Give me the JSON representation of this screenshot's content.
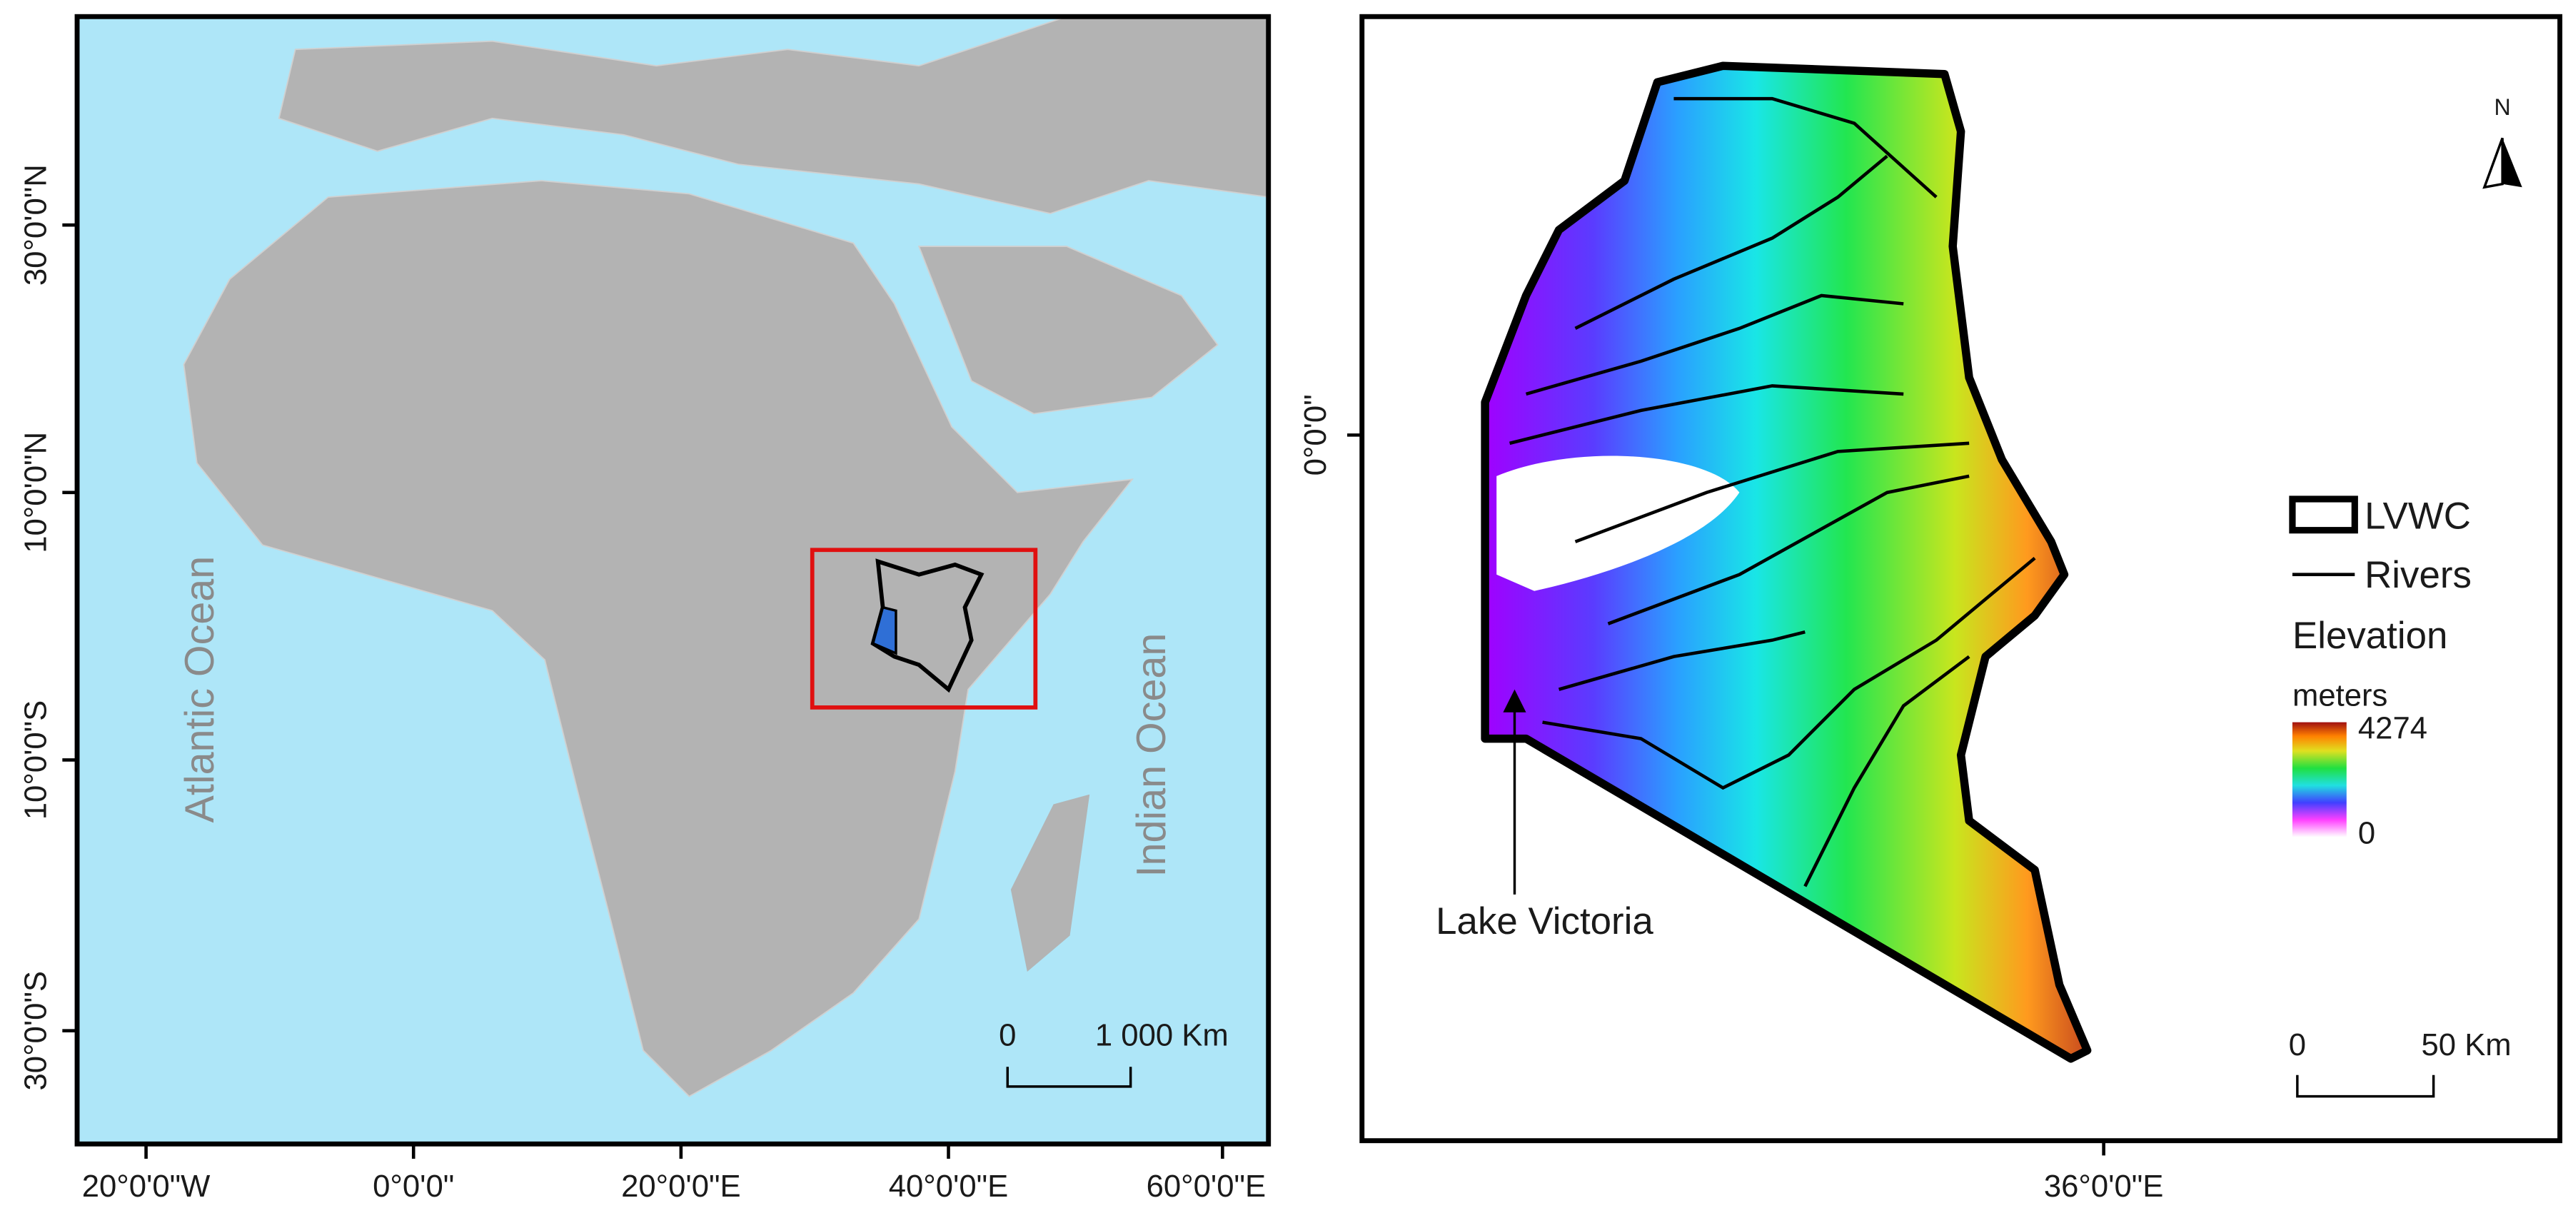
{
  "left_map": {
    "x_ticks": [
      "20°0'0\"W",
      "0°0'0\"",
      "20°0'0\"E",
      "40°0'0\"E",
      "60°0'0\"E"
    ],
    "y_ticks": [
      "30°0'0\"N",
      "10°0'0\"N",
      "10°0'0\"S",
      "30°0'0\"S"
    ],
    "ocean_labels": [
      "Atlantic Ocean",
      "Indian Ocean"
    ],
    "scale_bar": [
      "0",
      "1 000 Km"
    ]
  },
  "right_map": {
    "x_ticks": [
      "36°0'0\"E"
    ],
    "y_ticks": [
      "0°0'0\""
    ],
    "north_arrow": "N",
    "annotation": "Lake Victoria",
    "legend": {
      "boundary": "LVWC",
      "rivers": "Rivers",
      "title": "Elevation",
      "unit": "meters",
      "max": "4274",
      "min": "0"
    },
    "scale_bar": [
      "0",
      "50 Km"
    ]
  }
}
